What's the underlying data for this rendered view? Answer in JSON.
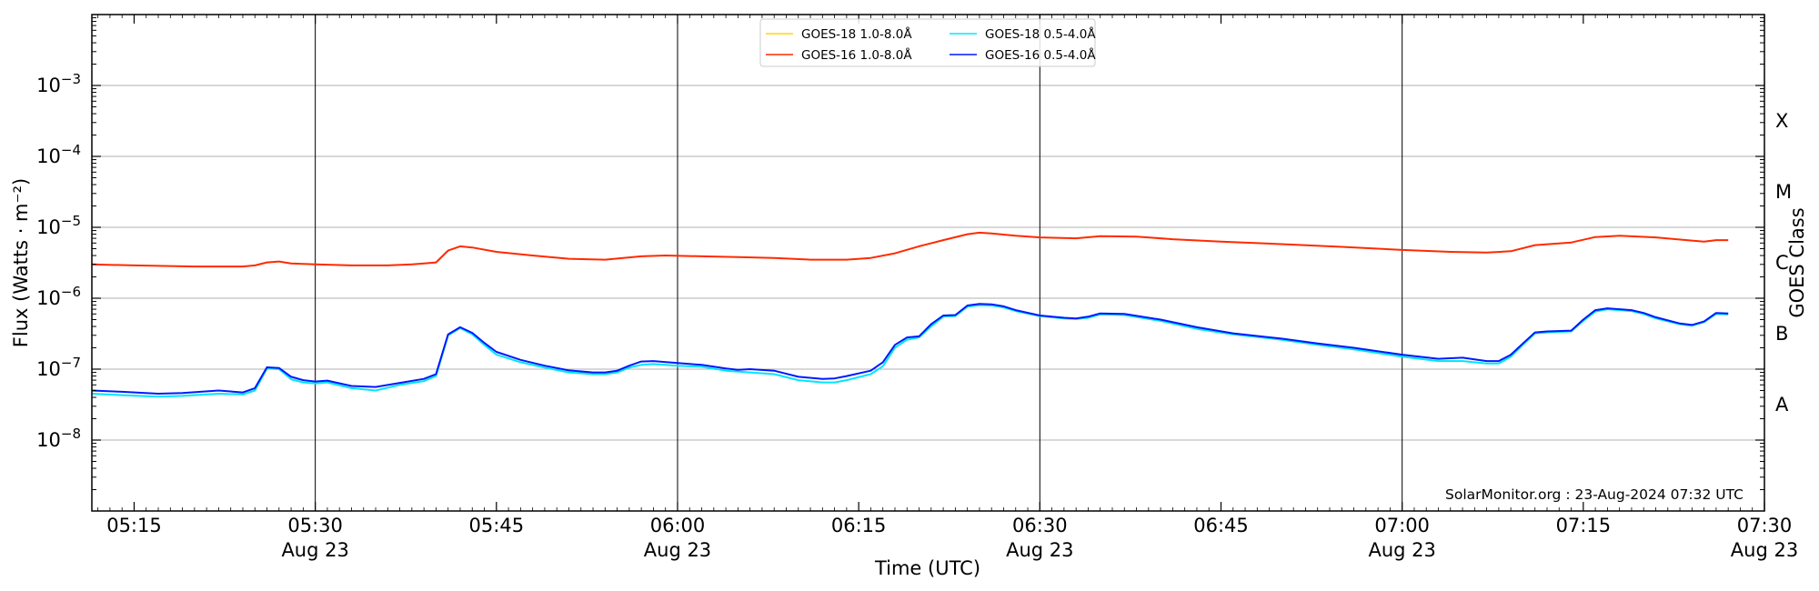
{
  "chart_data": {
    "type": "line",
    "xlabel": "Time (UTC)",
    "ylabel": "Flux (Watts · m⁻²)",
    "right_axis_label": "GOES Class",
    "credit": "SolarMonitor.org : 23-Aug-2024 07:32 UTC",
    "y_scale": "log",
    "ylim": [
      1e-09,
      0.01
    ],
    "xlim": [
      "05:11:30",
      "07:30:00"
    ],
    "grid": "horizontal at decades; vertical lines every 30 min",
    "legend_placement": "top-center",
    "x_ticks": [
      {
        "time": "05:15",
        "label": "05:15",
        "date": ""
      },
      {
        "time": "05:30",
        "label": "05:30",
        "date": "Aug 23"
      },
      {
        "time": "05:45",
        "label": "05:45",
        "date": ""
      },
      {
        "time": "06:00",
        "label": "06:00",
        "date": "Aug 23"
      },
      {
        "time": "06:15",
        "label": "06:15",
        "date": ""
      },
      {
        "time": "06:30",
        "label": "06:30",
        "date": "Aug 23"
      },
      {
        "time": "06:45",
        "label": "06:45",
        "date": ""
      },
      {
        "time": "07:00",
        "label": "07:00",
        "date": "Aug 23"
      },
      {
        "time": "07:15",
        "label": "07:15",
        "date": ""
      },
      {
        "time": "07:30",
        "label": "07:30",
        "date": "Aug 23"
      }
    ],
    "y_ticks": [
      {
        "value": 1e-08,
        "mantissa": "10",
        "exp": "−8"
      },
      {
        "value": 1e-07,
        "mantissa": "10",
        "exp": "−7"
      },
      {
        "value": 1e-06,
        "mantissa": "10",
        "exp": "−6"
      },
      {
        "value": 1e-05,
        "mantissa": "10",
        "exp": "−5"
      },
      {
        "value": 0.0001,
        "mantissa": "10",
        "exp": "−4"
      },
      {
        "value": 0.001,
        "mantissa": "10",
        "exp": "−3"
      }
    ],
    "goes_classes": [
      {
        "label": "A",
        "value": 3.16e-08
      },
      {
        "label": "B",
        "value": 3.16e-07
      },
      {
        "label": "C",
        "value": 3.16e-06
      },
      {
        "label": "M",
        "value": 3.16e-05
      },
      {
        "label": "X",
        "value": 0.000316
      }
    ],
    "series": [
      {
        "name": "GOES-18 1.0-8.0Å",
        "color": "#ffd700",
        "points": []
      },
      {
        "name": "GOES-16 1.0-8.0Å",
        "color": "#ff2a00",
        "points": [
          [
            "05:11:30",
            3e-06
          ],
          [
            "05:15",
            2.9e-06
          ],
          [
            "05:20",
            2.8e-06
          ],
          [
            "05:24",
            2.8e-06
          ],
          [
            "05:25",
            2.9e-06
          ],
          [
            "05:26",
            3.2e-06
          ],
          [
            "05:27",
            3.3e-06
          ],
          [
            "05:28",
            3.1e-06
          ],
          [
            "05:30",
            3e-06
          ],
          [
            "05:33",
            2.9e-06
          ],
          [
            "05:36",
            2.9e-06
          ],
          [
            "05:38",
            3e-06
          ],
          [
            "05:39",
            3.1e-06
          ],
          [
            "05:40",
            3.2e-06
          ],
          [
            "05:41",
            4.7e-06
          ],
          [
            "05:42",
            5.4e-06
          ],
          [
            "05:43",
            5.2e-06
          ],
          [
            "05:45",
            4.5e-06
          ],
          [
            "05:48",
            4e-06
          ],
          [
            "05:51",
            3.6e-06
          ],
          [
            "05:54",
            3.5e-06
          ],
          [
            "05:57",
            3.9e-06
          ],
          [
            "05:59",
            4e-06
          ],
          [
            "06:02",
            3.9e-06
          ],
          [
            "06:05",
            3.8e-06
          ],
          [
            "06:08",
            3.7e-06
          ],
          [
            "06:11",
            3.5e-06
          ],
          [
            "06:14",
            3.5e-06
          ],
          [
            "06:16",
            3.7e-06
          ],
          [
            "06:18",
            4.3e-06
          ],
          [
            "06:20",
            5.4e-06
          ],
          [
            "06:22",
            6.6e-06
          ],
          [
            "06:24",
            8e-06
          ],
          [
            "06:25",
            8.4e-06
          ],
          [
            "06:26",
            8.2e-06
          ],
          [
            "06:28",
            7.6e-06
          ],
          [
            "06:30",
            7.2e-06
          ],
          [
            "06:33",
            7e-06
          ],
          [
            "06:35",
            7.5e-06
          ],
          [
            "06:38",
            7.4e-06
          ],
          [
            "06:41",
            6.8e-06
          ],
          [
            "06:45",
            6.3e-06
          ],
          [
            "06:50",
            5.8e-06
          ],
          [
            "06:55",
            5.3e-06
          ],
          [
            "07:00",
            4.8e-06
          ],
          [
            "07:04",
            4.5e-06
          ],
          [
            "07:07",
            4.4e-06
          ],
          [
            "07:09",
            4.6e-06
          ],
          [
            "07:11",
            5.6e-06
          ],
          [
            "07:14",
            6.1e-06
          ],
          [
            "07:16",
            7.3e-06
          ],
          [
            "07:18",
            7.6e-06
          ],
          [
            "07:21",
            7.2e-06
          ],
          [
            "07:24",
            6.5e-06
          ],
          [
            "07:25",
            6.3e-06
          ],
          [
            "07:26",
            6.6e-06
          ],
          [
            "07:27",
            6.6e-06
          ]
        ]
      },
      {
        "name": "GOES-18 0.5-4.0Å",
        "color": "#00e5ff",
        "points": [
          [
            "05:11:30",
            4.5e-08
          ],
          [
            "05:14",
            4.3e-08
          ],
          [
            "05:17",
            4.1e-08
          ],
          [
            "05:19",
            4.2e-08
          ],
          [
            "05:22",
            4.5e-08
          ],
          [
            "05:24",
            4.4e-08
          ],
          [
            "05:25",
            5e-08
          ],
          [
            "05:26",
            1.02e-07
          ],
          [
            "05:27",
            1e-07
          ],
          [
            "05:28",
            7.2e-08
          ],
          [
            "05:29",
            6.5e-08
          ],
          [
            "05:30",
            6.3e-08
          ],
          [
            "05:31",
            6.5e-08
          ],
          [
            "05:33",
            5.4e-08
          ],
          [
            "05:35",
            5e-08
          ],
          [
            "05:37",
            6e-08
          ],
          [
            "05:39",
            6.8e-08
          ],
          [
            "05:40",
            8e-08
          ],
          [
            "05:41",
            3e-07
          ],
          [
            "05:42",
            3.8e-07
          ],
          [
            "05:43",
            3.1e-07
          ],
          [
            "05:44",
            2.2e-07
          ],
          [
            "05:45",
            1.6e-07
          ],
          [
            "05:47",
            1.25e-07
          ],
          [
            "05:49",
            1.05e-07
          ],
          [
            "05:51",
            9e-08
          ],
          [
            "05:53",
            8.5e-08
          ],
          [
            "05:54",
            8.5e-08
          ],
          [
            "05:55",
            9e-08
          ],
          [
            "05:56",
            1.05e-07
          ],
          [
            "05:57",
            1.15e-07
          ],
          [
            "05:58",
            1.18e-07
          ],
          [
            "06:00",
            1.12e-07
          ],
          [
            "06:02",
            1.08e-07
          ],
          [
            "06:04",
            9.5e-08
          ],
          [
            "06:06",
            9e-08
          ],
          [
            "06:08",
            8.5e-08
          ],
          [
            "06:10",
            7e-08
          ],
          [
            "06:12",
            6.5e-08
          ],
          [
            "06:13",
            6.5e-08
          ],
          [
            "06:14",
            7e-08
          ],
          [
            "06:16",
            8.5e-08
          ],
          [
            "06:17",
            1.1e-07
          ],
          [
            "06:18",
            2e-07
          ],
          [
            "06:19",
            2.6e-07
          ],
          [
            "06:20",
            2.8e-07
          ],
          [
            "06:21",
            4e-07
          ],
          [
            "06:22",
            5.5e-07
          ],
          [
            "06:23",
            5.6e-07
          ],
          [
            "06:24",
            7.6e-07
          ],
          [
            "06:25",
            8e-07
          ],
          [
            "06:26",
            7.9e-07
          ],
          [
            "06:27",
            7.4e-07
          ],
          [
            "06:28",
            6.6e-07
          ],
          [
            "06:30",
            5.6e-07
          ],
          [
            "06:32",
            5.2e-07
          ],
          [
            "06:33",
            5.1e-07
          ],
          [
            "06:34",
            5.3e-07
          ],
          [
            "06:35",
            5.9e-07
          ],
          [
            "06:37",
            5.8e-07
          ],
          [
            "06:40",
            4.8e-07
          ],
          [
            "06:43",
            3.7e-07
          ],
          [
            "06:46",
            3.1e-07
          ],
          [
            "06:50",
            2.6e-07
          ],
          [
            "06:53",
            2.2e-07
          ],
          [
            "06:56",
            1.9e-07
          ],
          [
            "07:00",
            1.5e-07
          ],
          [
            "07:03",
            1.3e-07
          ],
          [
            "07:05",
            1.3e-07
          ],
          [
            "07:07",
            1.2e-07
          ],
          [
            "07:08",
            1.2e-07
          ],
          [
            "07:09",
            1.5e-07
          ],
          [
            "07:10",
            2.2e-07
          ],
          [
            "07:11",
            3.2e-07
          ],
          [
            "07:12",
            3.3e-07
          ],
          [
            "07:14",
            3.4e-07
          ],
          [
            "07:15",
            4.8e-07
          ],
          [
            "07:16",
            6.5e-07
          ],
          [
            "07:17",
            7e-07
          ],
          [
            "07:19",
            6.6e-07
          ],
          [
            "07:20",
            6e-07
          ],
          [
            "07:21",
            5.2e-07
          ],
          [
            "07:23",
            4.3e-07
          ],
          [
            "07:24",
            4.1e-07
          ],
          [
            "07:25",
            4.6e-07
          ],
          [
            "07:26",
            6e-07
          ],
          [
            "07:27",
            5.9e-07
          ]
        ]
      },
      {
        "name": "GOES-16 0.5-4.0Å",
        "color": "#0019ff",
        "points": [
          [
            "05:11:30",
            5e-08
          ],
          [
            "05:14",
            4.8e-08
          ],
          [
            "05:17",
            4.5e-08
          ],
          [
            "05:19",
            4.6e-08
          ],
          [
            "05:22",
            5e-08
          ],
          [
            "05:24",
            4.7e-08
          ],
          [
            "05:25",
            5.4e-08
          ],
          [
            "05:26",
            1.06e-07
          ],
          [
            "05:27",
            1.04e-07
          ],
          [
            "05:28",
            7.8e-08
          ],
          [
            "05:29",
            7e-08
          ],
          [
            "05:30",
            6.7e-08
          ],
          [
            "05:31",
            6.9e-08
          ],
          [
            "05:33",
            5.8e-08
          ],
          [
            "05:35",
            5.6e-08
          ],
          [
            "05:37",
            6.4e-08
          ],
          [
            "05:39",
            7.3e-08
          ],
          [
            "05:40",
            8.5e-08
          ],
          [
            "05:41",
            3.1e-07
          ],
          [
            "05:42",
            3.9e-07
          ],
          [
            "05:43",
            3.25e-07
          ],
          [
            "05:44",
            2.35e-07
          ],
          [
            "05:45",
            1.75e-07
          ],
          [
            "05:47",
            1.35e-07
          ],
          [
            "05:49",
            1.12e-07
          ],
          [
            "05:51",
            9.6e-08
          ],
          [
            "05:53",
            9e-08
          ],
          [
            "05:54",
            9e-08
          ],
          [
            "05:55",
            9.5e-08
          ],
          [
            "05:56",
            1.12e-07
          ],
          [
            "05:57",
            1.28e-07
          ],
          [
            "05:58",
            1.3e-07
          ],
          [
            "06:00",
            1.22e-07
          ],
          [
            "06:02",
            1.15e-07
          ],
          [
            "06:04",
            1.02e-07
          ],
          [
            "06:05",
            9.8e-08
          ],
          [
            "06:06",
            1e-07
          ],
          [
            "06:08",
            9.5e-08
          ],
          [
            "06:10",
            7.8e-08
          ],
          [
            "06:12",
            7.3e-08
          ],
          [
            "06:13",
            7.4e-08
          ],
          [
            "06:14",
            8e-08
          ],
          [
            "06:16",
            9.5e-08
          ],
          [
            "06:17",
            1.25e-07
          ],
          [
            "06:18",
            2.2e-07
          ],
          [
            "06:19",
            2.8e-07
          ],
          [
            "06:20",
            2.9e-07
          ],
          [
            "06:21",
            4.3e-07
          ],
          [
            "06:22",
            5.7e-07
          ],
          [
            "06:23",
            5.8e-07
          ],
          [
            "06:24",
            7.9e-07
          ],
          [
            "06:25",
            8.3e-07
          ],
          [
            "06:26",
            8.2e-07
          ],
          [
            "06:27",
            7.7e-07
          ],
          [
            "06:28",
            6.8e-07
          ],
          [
            "06:30",
            5.7e-07
          ],
          [
            "06:32",
            5.3e-07
          ],
          [
            "06:33",
            5.2e-07
          ],
          [
            "06:34",
            5.5e-07
          ],
          [
            "06:35",
            6.1e-07
          ],
          [
            "06:37",
            6e-07
          ],
          [
            "06:40",
            5e-07
          ],
          [
            "06:43",
            3.9e-07
          ],
          [
            "06:46",
            3.2e-07
          ],
          [
            "06:50",
            2.7e-07
          ],
          [
            "06:53",
            2.3e-07
          ],
          [
            "06:56",
            2e-07
          ],
          [
            "07:00",
            1.6e-07
          ],
          [
            "07:03",
            1.4e-07
          ],
          [
            "07:05",
            1.45e-07
          ],
          [
            "07:07",
            1.3e-07
          ],
          [
            "07:08",
            1.3e-07
          ],
          [
            "07:09",
            1.6e-07
          ],
          [
            "07:10",
            2.3e-07
          ],
          [
            "07:11",
            3.3e-07
          ],
          [
            "07:12",
            3.4e-07
          ],
          [
            "07:14",
            3.5e-07
          ],
          [
            "07:15",
            5e-07
          ],
          [
            "07:16",
            6.8e-07
          ],
          [
            "07:17",
            7.2e-07
          ],
          [
            "07:19",
            6.8e-07
          ],
          [
            "07:20",
            6.2e-07
          ],
          [
            "07:21",
            5.4e-07
          ],
          [
            "07:23",
            4.4e-07
          ],
          [
            "07:24",
            4.2e-07
          ],
          [
            "07:25",
            4.7e-07
          ],
          [
            "07:26",
            6.2e-07
          ],
          [
            "07:27",
            6.1e-07
          ]
        ]
      }
    ]
  }
}
